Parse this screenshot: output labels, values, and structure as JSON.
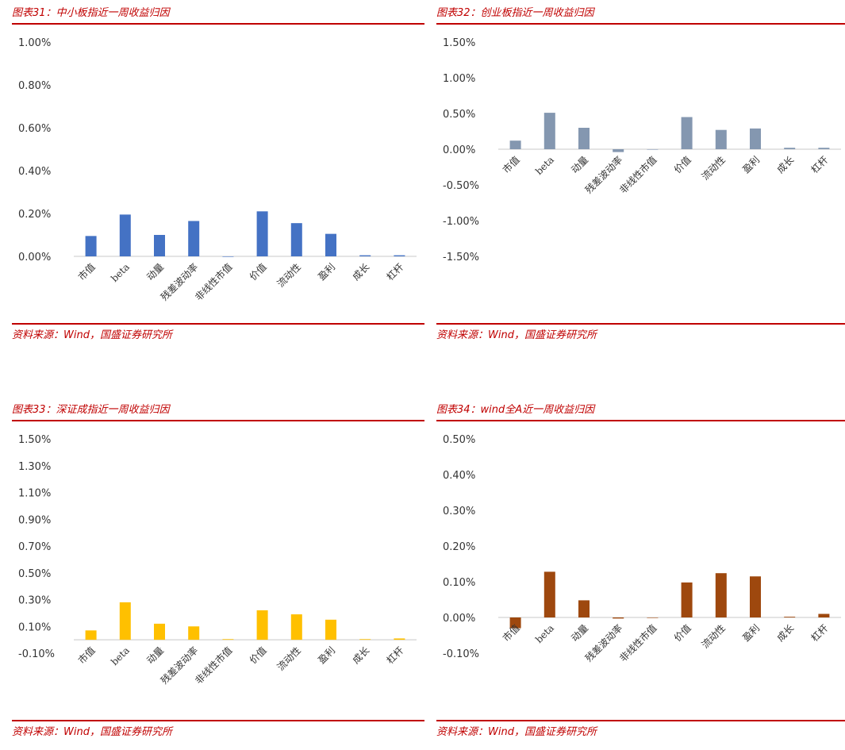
{
  "source_label": "资料来源：Wind，国盛证券研究所",
  "charts": [
    {
      "figure_title": "图表31：中小板指近一周收益归因",
      "chart_data": {
        "type": "bar",
        "categories": [
          "市值",
          "beta",
          "动量",
          "残差波动率",
          "非线性市值",
          "价值",
          "流动性",
          "盈利",
          "成长",
          "杠杆"
        ],
        "values": [
          0.095,
          0.195,
          0.1,
          0.165,
          0.0,
          0.21,
          0.155,
          0.105,
          0.005,
          0.005
        ],
        "yticks": [
          "1.00%",
          "0.80%",
          "0.60%",
          "0.40%",
          "0.20%",
          "0.00%"
        ],
        "ytick_values": [
          1.0,
          0.8,
          0.6,
          0.4,
          0.2,
          0.0
        ],
        "ylim": [
          0.0,
          1.0
        ],
        "unit": "%",
        "color": "#4472c4",
        "grid": false
      }
    },
    {
      "figure_title": "图表32：创业板指近一周收益归因",
      "chart_data": {
        "type": "bar",
        "categories": [
          "市值",
          "beta",
          "动量",
          "残差波动率",
          "非线性市值",
          "价值",
          "流动性",
          "盈利",
          "成长",
          "杠杆"
        ],
        "values": [
          0.12,
          0.51,
          0.3,
          -0.04,
          0.0,
          0.45,
          0.27,
          0.29,
          0.02,
          0.02
        ],
        "yticks": [
          "1.50%",
          "1.00%",
          "0.50%",
          "0.00%",
          "-0.50%",
          "-1.00%",
          "-1.50%"
        ],
        "ytick_values": [
          1.5,
          1.0,
          0.5,
          0.0,
          -0.5,
          -1.0,
          -1.5
        ],
        "ylim": [
          -1.5,
          1.5
        ],
        "unit": "%",
        "color": "#8497b0",
        "grid": false
      }
    },
    {
      "figure_title": "图表33：深证成指近一周收益归因",
      "chart_data": {
        "type": "bar",
        "categories": [
          "市值",
          "beta",
          "动量",
          "残差波动率",
          "非线性市值",
          "价值",
          "流动性",
          "盈利",
          "成长",
          "杠杆"
        ],
        "values": [
          0.07,
          0.28,
          0.12,
          0.1,
          0.005,
          0.22,
          0.19,
          0.15,
          0.005,
          0.01
        ],
        "yticks": [
          "1.50%",
          "1.30%",
          "1.10%",
          "0.90%",
          "0.70%",
          "0.50%",
          "0.30%",
          "0.10%",
          "-0.10%"
        ],
        "ytick_values": [
          1.5,
          1.3,
          1.1,
          0.9,
          0.7,
          0.5,
          0.3,
          0.1,
          -0.1
        ],
        "ylim": [
          -0.1,
          1.5
        ],
        "unit": "%",
        "color": "#ffc000",
        "grid": false
      }
    },
    {
      "figure_title": "图表34：wind全A近一周收益归因",
      "chart_data": {
        "type": "bar",
        "categories": [
          "市值",
          "beta",
          "动量",
          "残差波动率",
          "非线性市值",
          "价值",
          "流动性",
          "盈利",
          "成长",
          "杠杆"
        ],
        "values": [
          -0.03,
          0.128,
          0.048,
          -0.003,
          -0.001,
          0.098,
          0.124,
          0.115,
          0.002,
          0.01
        ],
        "yticks": [
          "0.50%",
          "0.40%",
          "0.30%",
          "0.20%",
          "0.10%",
          "0.00%",
          "-0.10%"
        ],
        "ytick_values": [
          0.5,
          0.4,
          0.3,
          0.2,
          0.1,
          0.0,
          -0.1
        ],
        "ylim": [
          -0.1,
          0.5
        ],
        "unit": "%",
        "color": "#9e480e",
        "grid": false
      }
    }
  ]
}
